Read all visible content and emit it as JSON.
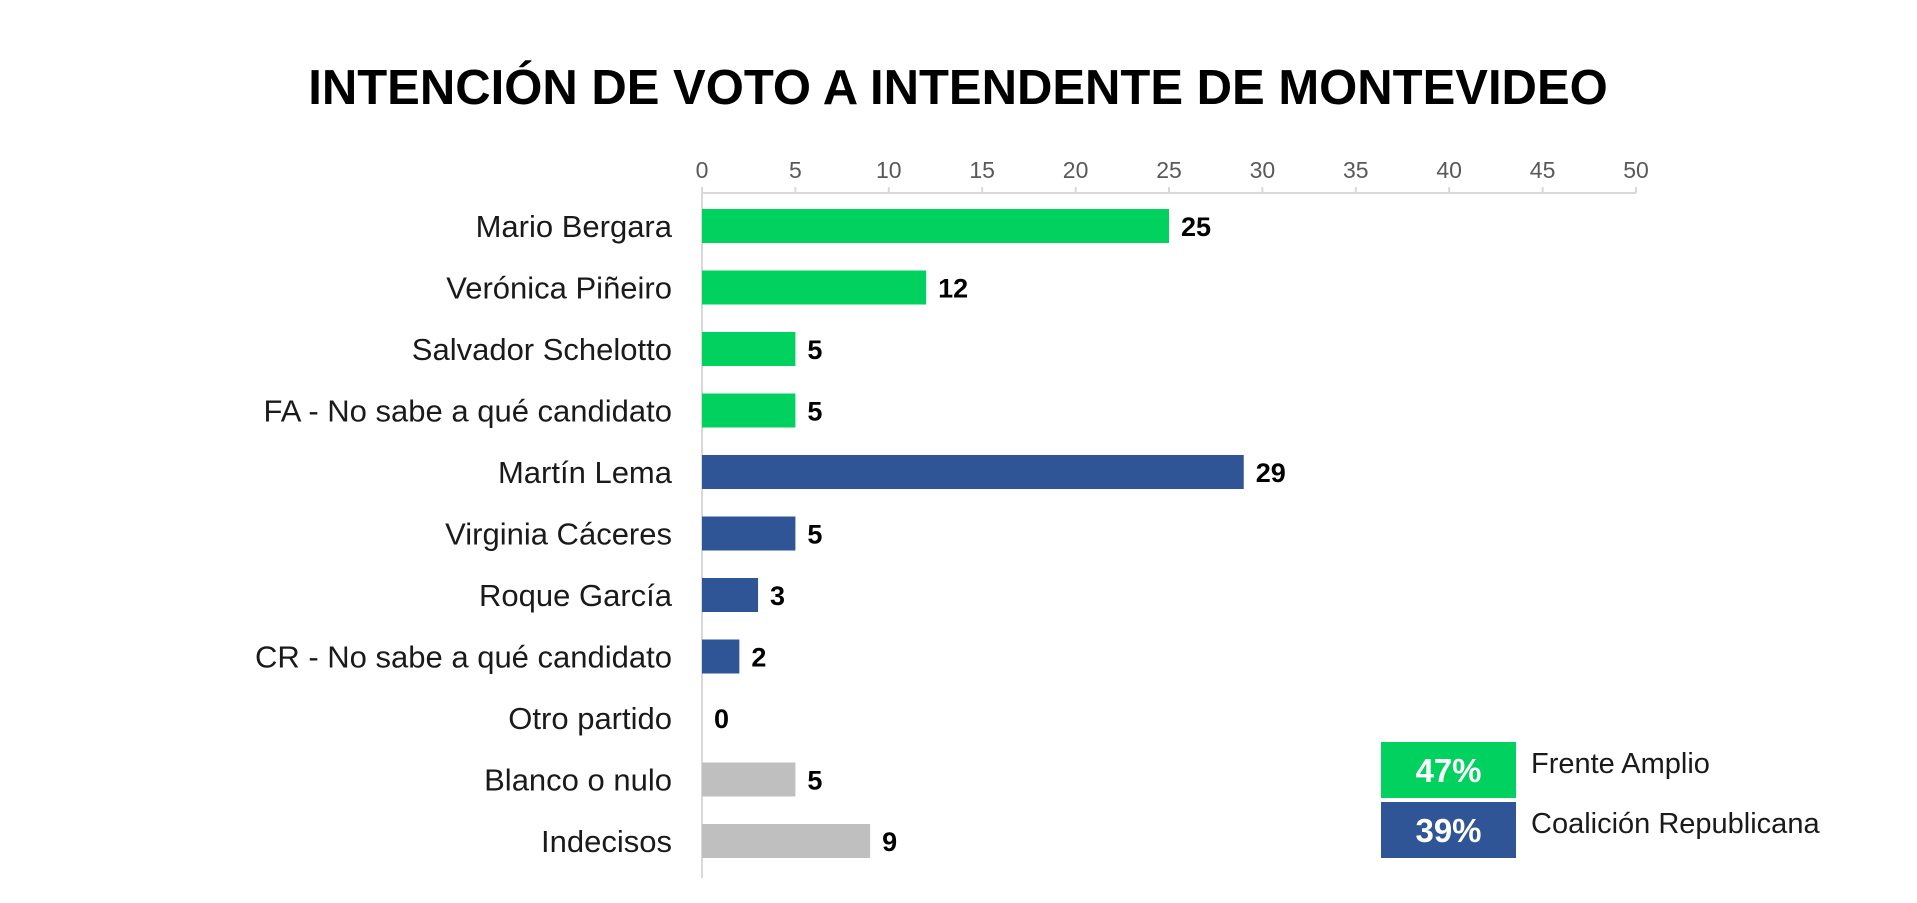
{
  "chart_data": {
    "type": "bar",
    "orientation": "horizontal",
    "title": "INTENCIÓN DE VOTO A INTENDENTE DE MONTEVIDEO",
    "xlim": [
      0,
      50
    ],
    "x_ticks": [
      0,
      5,
      10,
      15,
      20,
      25,
      30,
      35,
      40,
      45,
      50
    ],
    "x_axis_position": "top",
    "grid": false,
    "categories": [
      "Mario Bergara",
      "Verónica Piñeiro",
      "Salvador Schelotto",
      "FA - No sabe a qué candidato",
      "Martín Lema",
      "Virginia Cáceres",
      "Roque García",
      "CR - No sabe a qué candidato",
      "Otro partido",
      "Blanco o nulo",
      "Indecisos"
    ],
    "values": [
      25,
      12,
      5,
      5,
      29,
      5,
      3,
      2,
      0,
      5,
      9
    ],
    "bar_groups": [
      "fa",
      "fa",
      "fa",
      "fa",
      "cr",
      "cr",
      "cr",
      "cr",
      "other",
      "other",
      "other"
    ],
    "colors": {
      "fa": "#00d15f",
      "cr": "#2f5597",
      "other": "#bfbfbf"
    },
    "legend_position": "bottom-right",
    "legend": [
      {
        "pct": "47%",
        "label": "Frente Amplio",
        "group": "fa"
      },
      {
        "pct": "39%",
        "label": "Coalición Republicana",
        "group": "cr"
      }
    ]
  }
}
